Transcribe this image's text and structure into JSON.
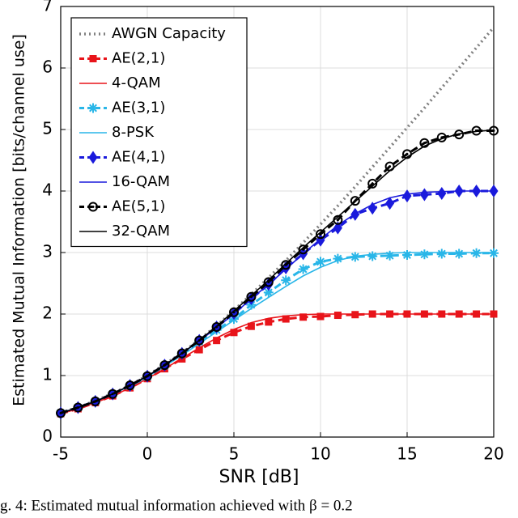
{
  "chart_data": {
    "type": "line",
    "xlabel": "SNR [dB]",
    "ylabel": "Estimated Mutual Information [bits/channel use]",
    "caption": "g. 4: Estimated mutual information achieved with β = 0.2",
    "xlim": [
      -5,
      20
    ],
    "xticks": [
      -5,
      0,
      5,
      10,
      15,
      20
    ],
    "ylim": [
      0,
      7
    ],
    "yticks": [
      0,
      1,
      2,
      3,
      4,
      5,
      6,
      7
    ],
    "grid": true,
    "legend": "upper left",
    "x": [
      -5,
      -4,
      -3,
      -2,
      -1,
      0,
      1,
      2,
      3,
      4,
      5,
      6,
      7,
      8,
      9,
      10,
      11,
      12,
      13,
      14,
      15,
      16,
      17,
      18,
      19,
      20
    ],
    "series": [
      {
        "name": "AWGN Capacity",
        "color": "#808080",
        "linestyle": "dotted",
        "marker": "none",
        "values": [
          0.4,
          0.48,
          0.59,
          0.71,
          0.84,
          1.0,
          1.18,
          1.37,
          1.58,
          1.81,
          2.06,
          2.32,
          2.59,
          2.87,
          3.16,
          3.46,
          3.76,
          4.07,
          4.39,
          4.71,
          5.03,
          5.35,
          5.68,
          6.0,
          6.33,
          6.66
        ]
      },
      {
        "name": "AE(2,1)",
        "color": "#e8141a",
        "linestyle": "dashed",
        "marker": "square",
        "values": [
          0.38,
          0.46,
          0.56,
          0.67,
          0.8,
          0.95,
          1.11,
          1.27,
          1.42,
          1.57,
          1.7,
          1.8,
          1.87,
          1.92,
          1.95,
          1.96,
          1.98,
          1.99,
          2.0,
          2.0,
          2.0,
          2.0,
          2.0,
          2.0,
          2.0,
          2.0
        ]
      },
      {
        "name": "4-QAM",
        "color": "#e8141a",
        "linestyle": "solid",
        "marker": "none",
        "values": [
          0.38,
          0.46,
          0.56,
          0.67,
          0.8,
          0.95,
          1.11,
          1.28,
          1.45,
          1.61,
          1.75,
          1.86,
          1.93,
          1.97,
          1.99,
          2.0,
          2.0,
          2.0,
          2.0,
          2.0,
          2.0,
          2.0,
          2.0,
          2.0,
          2.0,
          2.0
        ]
      },
      {
        "name": "AE(3,1)",
        "color": "#29b6e8",
        "linestyle": "dashed",
        "marker": "star",
        "values": [
          0.39,
          0.48,
          0.58,
          0.7,
          0.83,
          0.98,
          1.16,
          1.35,
          1.55,
          1.74,
          1.92,
          2.15,
          2.35,
          2.55,
          2.73,
          2.85,
          2.9,
          2.93,
          2.94,
          2.95,
          2.96,
          2.97,
          2.98,
          2.98,
          2.99,
          2.99
        ]
      },
      {
        "name": "8-PSK",
        "color": "#29b6e8",
        "linestyle": "solid",
        "marker": "none",
        "values": [
          0.39,
          0.48,
          0.58,
          0.7,
          0.83,
          0.98,
          1.15,
          1.33,
          1.52,
          1.71,
          1.9,
          2.09,
          2.27,
          2.45,
          2.62,
          2.76,
          2.87,
          2.94,
          2.97,
          2.99,
          3.0,
          3.0,
          3.0,
          3.0,
          3.0,
          3.0
        ]
      },
      {
        "name": "AE(4,1)",
        "color": "#1a1adc",
        "linestyle": "dashed",
        "marker": "diamond",
        "values": [
          0.39,
          0.48,
          0.58,
          0.7,
          0.84,
          0.99,
          1.17,
          1.36,
          1.57,
          1.79,
          2.01,
          2.25,
          2.48,
          2.75,
          2.98,
          3.2,
          3.4,
          3.62,
          3.72,
          3.8,
          3.92,
          3.94,
          3.96,
          4.0,
          4.0,
          4.0
        ]
      },
      {
        "name": "16-QAM",
        "color": "#1a1adc",
        "linestyle": "solid",
        "marker": "none",
        "values": [
          0.39,
          0.48,
          0.58,
          0.7,
          0.84,
          0.99,
          1.17,
          1.36,
          1.56,
          1.78,
          2.0,
          2.25,
          2.48,
          2.73,
          2.98,
          3.22,
          3.44,
          3.63,
          3.78,
          3.89,
          3.95,
          3.98,
          3.99,
          4.0,
          4.0,
          4.0
        ]
      },
      {
        "name": "AE(5,1)",
        "color": "#000000",
        "linestyle": "dashed",
        "marker": "circle",
        "values": [
          0.39,
          0.48,
          0.58,
          0.7,
          0.84,
          0.99,
          1.17,
          1.36,
          1.57,
          1.79,
          2.03,
          2.28,
          2.52,
          2.8,
          3.05,
          3.3,
          3.53,
          3.84,
          4.12,
          4.4,
          4.6,
          4.78,
          4.87,
          4.92,
          4.98,
          4.98
        ]
      },
      {
        "name": "32-QAM",
        "color": "#000000",
        "linestyle": "solid",
        "marker": "none",
        "values": [
          0.39,
          0.48,
          0.58,
          0.7,
          0.84,
          0.99,
          1.17,
          1.36,
          1.57,
          1.8,
          2.05,
          2.3,
          2.55,
          2.82,
          3.08,
          3.33,
          3.58,
          3.83,
          4.08,
          4.33,
          4.55,
          4.73,
          4.85,
          4.93,
          4.97,
          4.99
        ]
      }
    ]
  }
}
